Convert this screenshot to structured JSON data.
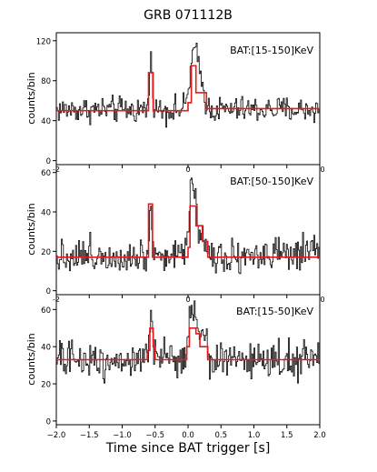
{
  "figure_title": "GRB 071112B",
  "x_axis_label": "Time since BAT trigger [s]",
  "colors": {
    "data": "#000000",
    "model": "#e8191b",
    "axes": "#000000"
  },
  "chart_data": [
    {
      "type": "line",
      "title": "",
      "annotation": "BAT:[15-150]KeV",
      "ylabel": "counts/bin",
      "xlim": [
        -2.0,
        2.0
      ],
      "ylim": [
        -4,
        128
      ],
      "y_ticks": [
        0,
        40,
        80,
        120
      ],
      "x_ticks": [
        -2.0,
        -1.5,
        -1.0,
        -0.5,
        0.0,
        0.5,
        1.0,
        1.5,
        2.0
      ],
      "x_tick_labels_visible": [
        "-2",
        "0"
      ],
      "baseline": 51,
      "noise": 6.5,
      "series": [
        {
          "style": "data-histogram",
          "color": "#000000",
          "peaks": [
            {
              "x": -0.56,
              "width": 0.05,
              "peak": 98
            },
            {
              "x": 0.09,
              "width": 0.12,
              "peak": 108
            },
            {
              "x": 0.2,
              "width": 0.1,
              "peak": 72
            }
          ]
        },
        {
          "style": "model-step",
          "color": "#e8191b",
          "steps": [
            [
              -2.0,
              50
            ],
            [
              -0.6,
              88
            ],
            [
              -0.53,
              50
            ],
            [
              0.0,
              58
            ],
            [
              0.05,
              95
            ],
            [
              0.12,
              68
            ],
            [
              0.28,
              52
            ],
            [
              2.0,
              52
            ]
          ]
        }
      ]
    },
    {
      "type": "line",
      "title": "",
      "annotation": "BAT:[50-150]KeV",
      "ylabel": "counts/bin",
      "xlim": [
        -2.0,
        2.0
      ],
      "ylim": [
        -2,
        64
      ],
      "y_ticks": [
        0,
        20,
        40,
        60
      ],
      "x_ticks": [
        -2.0,
        -1.5,
        -1.0,
        -0.5,
        0.0,
        0.5,
        1.0,
        1.5,
        2.0
      ],
      "x_tick_labels_visible": [
        "-2",
        "0"
      ],
      "baseline": 18,
      "noise": 4.5,
      "series": [
        {
          "style": "data-histogram",
          "color": "#000000",
          "peaks": [
            {
              "x": -0.56,
              "width": 0.04,
              "peak": 46
            },
            {
              "x": 0.07,
              "width": 0.1,
              "peak": 60
            },
            {
              "x": 0.22,
              "width": 0.08,
              "peak": 30
            }
          ]
        },
        {
          "style": "model-step",
          "color": "#e8191b",
          "steps": [
            [
              -2.0,
              17
            ],
            [
              -0.6,
              44
            ],
            [
              -0.54,
              17
            ],
            [
              0.0,
              22
            ],
            [
              0.03,
              43
            ],
            [
              0.12,
              33
            ],
            [
              0.22,
              25
            ],
            [
              0.3,
              17
            ],
            [
              2.0,
              17
            ]
          ]
        }
      ]
    },
    {
      "type": "line",
      "title": "",
      "annotation": "BAT:[15-50]KeV",
      "ylabel": "counts/bin",
      "xlim": [
        -2.0,
        2.0
      ],
      "ylim": [
        -2,
        68
      ],
      "y_ticks": [
        0,
        20,
        40,
        60
      ],
      "x_ticks": [
        -2.0,
        -1.5,
        -1.0,
        -0.5,
        0.0,
        0.5,
        1.0,
        1.5,
        2.0
      ],
      "x_tick_labels": [
        "−2.0",
        "−1.5",
        "−1.0",
        "−0.5",
        "0.0",
        "0.5",
        "1.0",
        "1.5",
        "2.0"
      ],
      "baseline": 33,
      "noise": 5,
      "series": [
        {
          "style": "data-histogram",
          "color": "#000000",
          "peaks": [
            {
              "x": -0.56,
              "width": 0.05,
              "peak": 55
            },
            {
              "x": 0.07,
              "width": 0.12,
              "peak": 64
            },
            {
              "x": 0.22,
              "width": 0.1,
              "peak": 45
            }
          ]
        },
        {
          "style": "model-step",
          "color": "#e8191b",
          "steps": [
            [
              -2.0,
              33
            ],
            [
              -0.62,
              38
            ],
            [
              -0.58,
              50
            ],
            [
              -0.53,
              40
            ],
            [
              -0.5,
              33
            ],
            [
              -0.02,
              40
            ],
            [
              0.02,
              50
            ],
            [
              0.12,
              47
            ],
            [
              0.18,
              40
            ],
            [
              0.3,
              33
            ],
            [
              2.0,
              33
            ]
          ]
        }
      ]
    }
  ]
}
